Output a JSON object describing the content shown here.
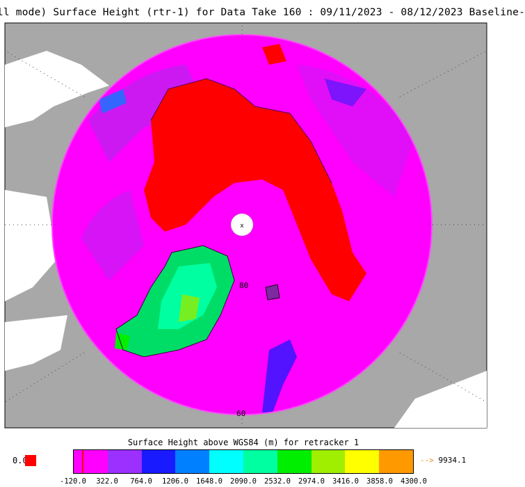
{
  "title": "ll mode) Surface Height (rtr-1) for Data Take 160 : 09/11/2023 - 08/12/2023 Baseline-",
  "map": {
    "projection": "north-polar-stereographic",
    "lat_labels": [
      "80",
      "60"
    ],
    "pole_marker": "x",
    "colors": {
      "land": "#a8a8a8",
      "ocean": "#ffffff",
      "ice_sea": "#ff0000",
      "magenta": "#ff00ff",
      "purple": "#bb22ee"
    }
  },
  "colorbar": {
    "title": "Surface Height above WGS84 (m) for retracker 1",
    "colors": [
      "#ff00ff",
      "#9b30ff",
      "#1a1aff",
      "#0080ff",
      "#00ffff",
      "#00ffa0",
      "#00ee00",
      "#a0ee00",
      "#ffff00",
      "#ff9900"
    ],
    "ticks": [
      "-120.0",
      "322.0",
      "764.0",
      "1206.0",
      "1648.0",
      "2090.0",
      "2532.0",
      "2974.0",
      "3416.0",
      "3858.0",
      "4300.0"
    ],
    "zero_label": "0.0",
    "zero_color": "#ff0000",
    "overflow_arrow": "-->",
    "overflow_value": "9934.1"
  }
}
